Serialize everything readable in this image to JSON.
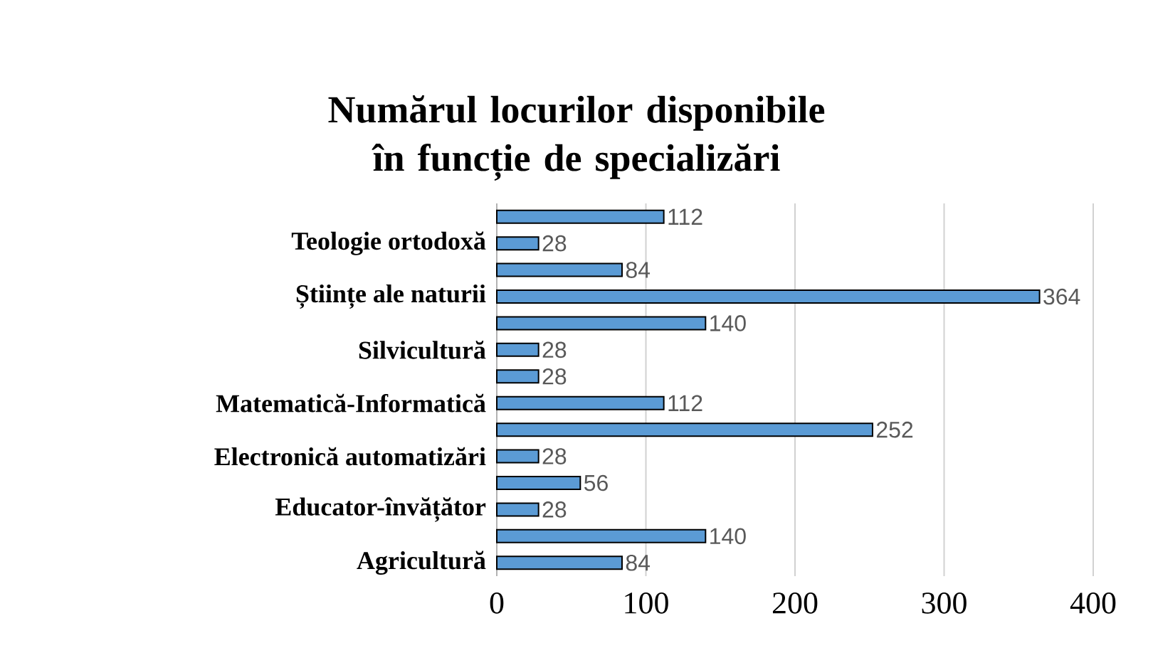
{
  "chart_data": {
    "type": "bar",
    "orientation": "horizontal",
    "title": "Numărul locurilor disponibile în funcție de specializări",
    "categories": [
      null,
      "Teologie ortodoxă",
      null,
      "Științe ale naturii",
      null,
      "Silvicultură",
      null,
      "Matematică-Informatică",
      null,
      "Electronică automatizări",
      null,
      "Educator-învățător",
      null,
      "Agricultură"
    ],
    "values": [
      112,
      28,
      84,
      364,
      140,
      28,
      28,
      112,
      252,
      28,
      56,
      28,
      140,
      84
    ],
    "color": "#5b9bd5",
    "xlim": [
      0,
      400
    ],
    "xticks": [
      0,
      100,
      200,
      300,
      400
    ],
    "grid": "x",
    "data_labels": true
  }
}
